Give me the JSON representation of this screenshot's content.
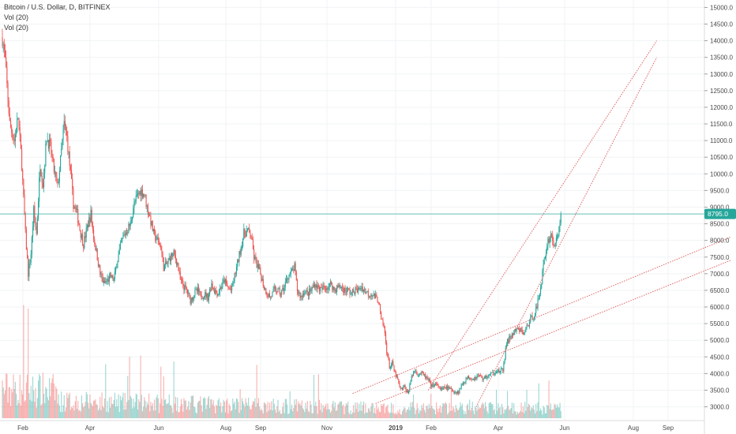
{
  "chart_data": {
    "type": "candlestick",
    "title": "Bitcoin / U.S. Dollar, D, BITFINEX",
    "indicators": [
      "Vol (20)",
      "Vol (20)"
    ],
    "x_ticks": [
      "Feb",
      "Apr",
      "Jun",
      "Aug",
      "Sep",
      "Nov",
      "2019",
      "Feb",
      "Apr",
      "Jun",
      "Aug",
      "Sep"
    ],
    "y_ticks": [
      3000,
      3500,
      4000,
      4500,
      5000,
      5500,
      6000,
      6500,
      7000,
      7500,
      8000,
      8500,
      9000,
      9500,
      10000,
      10500,
      11000,
      11500,
      12000,
      12500,
      13000,
      13500,
      14000,
      14500,
      15000
    ],
    "y_tick_labels": [
      "3000.0",
      "3500.0",
      "4000.0",
      "4500.0",
      "5000.0",
      "5500.0",
      "6000.0",
      "6500.0",
      "7000.0",
      "7500.0",
      "8000.0",
      "8500.0",
      "9000.0",
      "9500.0",
      "10000.0",
      "10500.0",
      "11000.0",
      "11500.0",
      "12000.0",
      "12500.0",
      "13000.0",
      "13500.0",
      "14000.0",
      "14500.0",
      "15000.0"
    ],
    "ylim": [
      2800,
      15200
    ],
    "x_range_days": [
      0,
      610
    ],
    "last_price": 8795.0,
    "last_price_label": "8795.0",
    "grid": true,
    "colors": {
      "up": "#26a69a",
      "down": "#ef5350",
      "trend": "#e06666",
      "price_line": "#26a69a",
      "grid": "#f0f3f5"
    },
    "close_path": [
      [
        0,
        14100
      ],
      [
        3,
        13400
      ],
      [
        8,
        11500
      ],
      [
        13,
        11000
      ],
      [
        17,
        11700
      ],
      [
        21,
        10300
      ],
      [
        25,
        8200
      ],
      [
        28,
        7000
      ],
      [
        31,
        7600
      ],
      [
        34,
        8900
      ],
      [
        37,
        8200
      ],
      [
        41,
        10300
      ],
      [
        44,
        9700
      ],
      [
        48,
        11100
      ],
      [
        52,
        10800
      ],
      [
        56,
        10100
      ],
      [
        60,
        9600
      ],
      [
        63,
        10400
      ],
      [
        67,
        11500
      ],
      [
        70,
        11100
      ],
      [
        74,
        10000
      ],
      [
        77,
        9100
      ],
      [
        81,
        8800
      ],
      [
        85,
        8200
      ],
      [
        88,
        7900
      ],
      [
        92,
        8400
      ],
      [
        96,
        8800
      ],
      [
        99,
        8100
      ],
      [
        103,
        7500
      ],
      [
        106,
        7000
      ],
      [
        110,
        6700
      ],
      [
        114,
        6800
      ],
      [
        118,
        6900
      ],
      [
        121,
        6800
      ],
      [
        124,
        7300
      ],
      [
        128,
        7800
      ],
      [
        131,
        8100
      ],
      [
        135,
        8300
      ],
      [
        139,
        8500
      ],
      [
        142,
        9000
      ],
      [
        146,
        9300
      ],
      [
        150,
        9500
      ],
      [
        154,
        9400
      ],
      [
        157,
        9000
      ],
      [
        160,
        8700
      ],
      [
        164,
        8200
      ],
      [
        168,
        8000
      ],
      [
        172,
        7800
      ],
      [
        175,
        7200
      ],
      [
        179,
        7300
      ],
      [
        182,
        7500
      ],
      [
        186,
        7600
      ],
      [
        190,
        7300
      ],
      [
        193,
        6800
      ],
      [
        197,
        6600
      ],
      [
        200,
        6500
      ],
      [
        204,
        6200
      ],
      [
        208,
        6400
      ],
      [
        212,
        6500
      ],
      [
        215,
        6300
      ],
      [
        219,
        6400
      ],
      [
        223,
        6300
      ],
      [
        227,
        6700
      ],
      [
        230,
        6500
      ],
      [
        234,
        6400
      ],
      [
        237,
        6600
      ],
      [
        241,
        6800
      ],
      [
        244,
        6600
      ],
      [
        248,
        6500
      ],
      [
        251,
        6800
      ],
      [
        255,
        7300
      ],
      [
        258,
        7700
      ],
      [
        262,
        8200
      ],
      [
        266,
        8300
      ],
      [
        270,
        8100
      ],
      [
        273,
        7500
      ],
      [
        277,
        7200
      ],
      [
        280,
        7000
      ],
      [
        284,
        6600
      ],
      [
        287,
        6400
      ],
      [
        291,
        6300
      ],
      [
        295,
        6500
      ],
      [
        298,
        6500
      ],
      [
        302,
        6400
      ],
      [
        306,
        6600
      ],
      [
        309,
        6900
      ],
      [
        313,
        7000
      ],
      [
        317,
        7200
      ],
      [
        320,
        6500
      ],
      [
        324,
        6300
      ],
      [
        328,
        6500
      ],
      [
        331,
        6400
      ],
      [
        335,
        6500
      ],
      [
        339,
        6700
      ],
      [
        342,
        6600
      ],
      [
        346,
        6500
      ],
      [
        349,
        6600
      ],
      [
        353,
        6600
      ],
      [
        357,
        6700
      ],
      [
        360,
        6500
      ],
      [
        364,
        6600
      ],
      [
        368,
        6600
      ],
      [
        371,
        6500
      ],
      [
        375,
        6500
      ],
      [
        379,
        6400
      ],
      [
        382,
        6500
      ],
      [
        386,
        6500
      ],
      [
        390,
        6600
      ],
      [
        393,
        6500
      ],
      [
        397,
        6400
      ],
      [
        401,
        6400
      ],
      [
        404,
        6300
      ],
      [
        408,
        6200
      ],
      [
        411,
        5600
      ],
      [
        414,
        5400
      ],
      [
        417,
        4700
      ],
      [
        420,
        4200
      ],
      [
        423,
        4300
      ],
      [
        426,
        4000
      ],
      [
        429,
        3800
      ],
      [
        432,
        3500
      ],
      [
        436,
        3600
      ],
      [
        440,
        3400
      ],
      [
        443,
        3800
      ],
      [
        447,
        4100
      ],
      [
        451,
        4000
      ],
      [
        455,
        4000
      ],
      [
        459,
        3900
      ],
      [
        462,
        3800
      ],
      [
        466,
        3600
      ],
      [
        469,
        3700
      ],
      [
        473,
        3600
      ],
      [
        477,
        3500
      ],
      [
        480,
        3600
      ],
      [
        484,
        3550
      ],
      [
        488,
        3500
      ],
      [
        491,
        3450
      ],
      [
        495,
        3450
      ],
      [
        499,
        3700
      ],
      [
        502,
        3800
      ],
      [
        506,
        3900
      ],
      [
        510,
        3850
      ],
      [
        514,
        3900
      ],
      [
        517,
        3950
      ],
      [
        521,
        3850
      ],
      [
        525,
        3900
      ],
      [
        528,
        3950
      ],
      [
        532,
        4000
      ],
      [
        536,
        4100
      ],
      [
        539,
        4050
      ],
      [
        543,
        4100
      ],
      [
        547,
        4900
      ],
      [
        551,
        5100
      ],
      [
        554,
        5200
      ],
      [
        558,
        5300
      ],
      [
        562,
        5300
      ],
      [
        566,
        5200
      ],
      [
        569,
        5400
      ],
      [
        573,
        5600
      ],
      [
        577,
        5800
      ],
      [
        580,
        6000
      ],
      [
        584,
        6600
      ],
      [
        587,
        7200
      ],
      [
        591,
        7900
      ],
      [
        595,
        8200
      ],
      [
        598,
        7900
      ],
      [
        602,
        8000
      ],
      [
        606,
        8795
      ]
    ],
    "trend_lines": [
      {
        "from": [
          462,
          3500
        ],
        "to": [
          710,
          14000
        ]
      },
      {
        "from": [
          514,
          3000
        ],
        "to": [
          710,
          13500
        ]
      },
      {
        "from": [
          380,
          3400
        ],
        "to": [
          790,
          8100
        ]
      },
      {
        "from": [
          405,
          3100
        ],
        "to": [
          790,
          7400
        ]
      }
    ]
  }
}
